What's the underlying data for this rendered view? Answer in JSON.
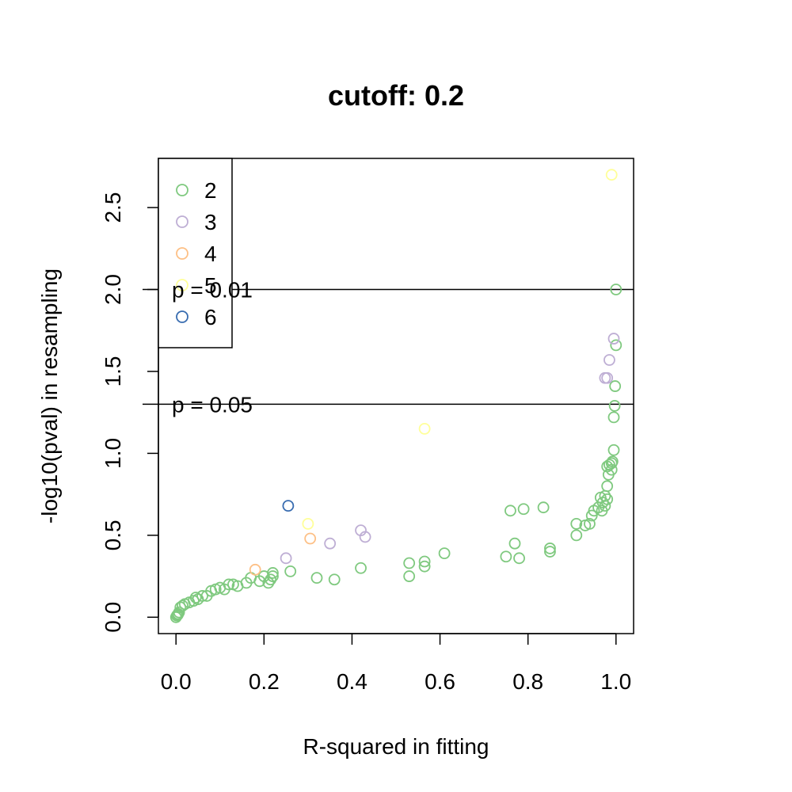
{
  "chart_data": {
    "type": "scatter",
    "title": "cutoff: 0.2",
    "xlabel": "R-squared in fitting",
    "ylabel": "-log10(pval) in resampling",
    "xlim": [
      -0.04,
      1.04
    ],
    "ylim": [
      -0.1,
      2.8
    ],
    "grid": false,
    "legend_position": "top-left",
    "x_ticks": [
      {
        "value": 0.0,
        "label": "0.0"
      },
      {
        "value": 0.2,
        "label": "0.2"
      },
      {
        "value": 0.4,
        "label": "0.4"
      },
      {
        "value": 0.6,
        "label": "0.6"
      },
      {
        "value": 0.8,
        "label": "0.8"
      },
      {
        "value": 1.0,
        "label": "1.0"
      }
    ],
    "y_ticks": [
      {
        "value": 0.0,
        "label": "0.0"
      },
      {
        "value": 0.5,
        "label": "0.5"
      },
      {
        "value": 1.0,
        "label": "1.0"
      },
      {
        "value": 1.5,
        "label": "1.5"
      },
      {
        "value": 2.0,
        "label": "2.0"
      },
      {
        "value": 2.5,
        "label": "2.5"
      }
    ],
    "reference_lines": [
      {
        "y": 2.0,
        "label": "p = 0.01"
      },
      {
        "y": 1.3,
        "label": "p = 0.05"
      }
    ],
    "series": [
      {
        "name": "2",
        "color": "#7fc97f",
        "points": [
          [
            0.0,
            0.0
          ],
          [
            0.002,
            0.01
          ],
          [
            0.004,
            0.015
          ],
          [
            0.005,
            0.02
          ],
          [
            0.007,
            0.03
          ],
          [
            0.01,
            0.06
          ],
          [
            0.015,
            0.07
          ],
          [
            0.02,
            0.08
          ],
          [
            0.03,
            0.09
          ],
          [
            0.04,
            0.1
          ],
          [
            0.045,
            0.12
          ],
          [
            0.05,
            0.11
          ],
          [
            0.06,
            0.13
          ],
          [
            0.07,
            0.13
          ],
          [
            0.08,
            0.16
          ],
          [
            0.09,
            0.17
          ],
          [
            0.1,
            0.18
          ],
          [
            0.11,
            0.17
          ],
          [
            0.12,
            0.2
          ],
          [
            0.13,
            0.2
          ],
          [
            0.14,
            0.19
          ],
          [
            0.16,
            0.21
          ],
          [
            0.17,
            0.24
          ],
          [
            0.19,
            0.22
          ],
          [
            0.2,
            0.25
          ],
          [
            0.21,
            0.21
          ],
          [
            0.215,
            0.23
          ],
          [
            0.22,
            0.25
          ],
          [
            0.22,
            0.27
          ],
          [
            0.26,
            0.28
          ],
          [
            0.32,
            0.24
          ],
          [
            0.36,
            0.23
          ],
          [
            0.42,
            0.3
          ],
          [
            0.53,
            0.25
          ],
          [
            0.53,
            0.33
          ],
          [
            0.565,
            0.34
          ],
          [
            0.565,
            0.31
          ],
          [
            0.61,
            0.39
          ],
          [
            0.75,
            0.37
          ],
          [
            0.76,
            0.65
          ],
          [
            0.77,
            0.45
          ],
          [
            0.78,
            0.36
          ],
          [
            0.79,
            0.66
          ],
          [
            0.835,
            0.67
          ],
          [
            0.85,
            0.42
          ],
          [
            0.85,
            0.4
          ],
          [
            0.91,
            0.57
          ],
          [
            0.91,
            0.5
          ],
          [
            0.93,
            0.56
          ],
          [
            0.94,
            0.57
          ],
          [
            0.945,
            0.62
          ],
          [
            0.95,
            0.65
          ],
          [
            0.96,
            0.67
          ],
          [
            0.965,
            0.73
          ],
          [
            0.968,
            0.65
          ],
          [
            0.97,
            0.7
          ],
          [
            0.975,
            0.74
          ],
          [
            0.975,
            0.68
          ],
          [
            0.98,
            0.72
          ],
          [
            0.98,
            0.8
          ],
          [
            0.98,
            0.92
          ],
          [
            0.983,
            0.87
          ],
          [
            0.985,
            0.93
          ],
          [
            0.99,
            0.94
          ],
          [
            0.99,
            0.9
          ],
          [
            0.992,
            0.95
          ],
          [
            0.995,
            1.02
          ],
          [
            0.995,
            1.22
          ],
          [
            0.997,
            1.29
          ],
          [
            0.998,
            1.41
          ],
          [
            1.0,
            1.66
          ],
          [
            1.0,
            2.0
          ]
        ]
      },
      {
        "name": "3",
        "color": "#beaed4",
        "points": [
          [
            0.25,
            0.36
          ],
          [
            0.35,
            0.45
          ],
          [
            0.42,
            0.53
          ],
          [
            0.43,
            0.49
          ],
          [
            0.975,
            1.46
          ],
          [
            0.98,
            1.46
          ],
          [
            0.985,
            1.57
          ],
          [
            0.995,
            1.7
          ]
        ]
      },
      {
        "name": "4",
        "color": "#fdc086",
        "points": [
          [
            0.18,
            0.29
          ],
          [
            0.305,
            0.48
          ]
        ]
      },
      {
        "name": "5",
        "color": "#ffff99",
        "points": [
          [
            0.3,
            0.57
          ],
          [
            0.565,
            1.15
          ],
          [
            0.99,
            2.7
          ]
        ]
      },
      {
        "name": "6",
        "color": "#386cb0",
        "points": [
          [
            0.255,
            0.68
          ]
        ]
      }
    ]
  }
}
